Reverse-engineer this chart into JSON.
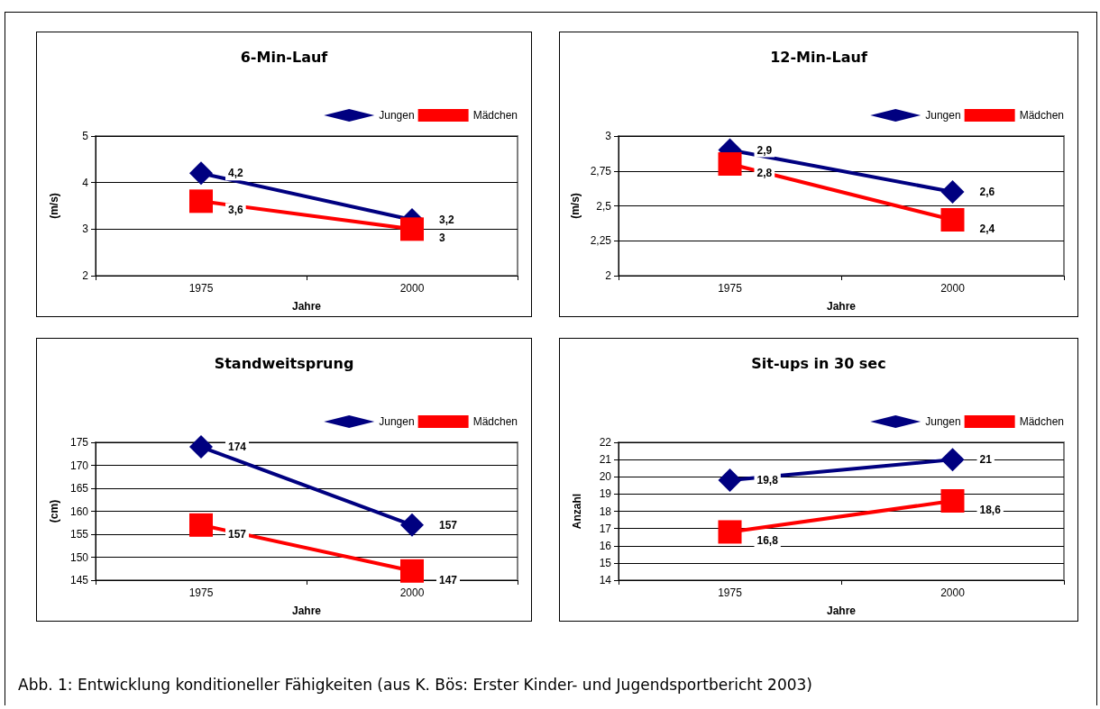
{
  "chart_data": [
    {
      "type": "line",
      "title": "6-Min-Lauf",
      "xlabel": "Jahre",
      "ylabel": "(m/s)",
      "categories": [
        "1975",
        "2000"
      ],
      "ylim": [
        2,
        5
      ],
      "yticks": [
        2,
        3,
        4,
        5
      ],
      "grid": "y",
      "legend": "top right",
      "series": [
        {
          "name": "Jungen",
          "color": "#000080",
          "marker": "diamond",
          "values": [
            4.2,
            3.2
          ],
          "value_labels": [
            "4,2",
            "3,2"
          ]
        },
        {
          "name": "Mädchen",
          "color": "#ff0000",
          "marker": "square",
          "values": [
            3.6,
            3
          ],
          "value_labels": [
            "3,6",
            "3"
          ]
        }
      ]
    },
    {
      "type": "line",
      "title": "12-Min-Lauf",
      "xlabel": "Jahre",
      "ylabel": "(m/s)",
      "categories": [
        "1975",
        "2000"
      ],
      "ylim": [
        2,
        3
      ],
      "yticks": [
        2,
        {
          "value": 2.25,
          "label": "2,25"
        },
        {
          "value": 2.5,
          "label": "2,5"
        },
        {
          "value": 2.75,
          "label": "2,75"
        },
        3
      ],
      "grid": "y",
      "legend": "top right",
      "series": [
        {
          "name": "Jungen",
          "color": "#000080",
          "marker": "diamond",
          "values": [
            2.9,
            2.6
          ],
          "value_labels": [
            "2,9",
            "2,6"
          ]
        },
        {
          "name": "Mädchen",
          "color": "#ff0000",
          "marker": "square",
          "values": [
            2.8,
            2.4
          ],
          "value_labels": [
            "2,8",
            "2,4"
          ]
        }
      ]
    },
    {
      "type": "line",
      "title": "Standweitsprung",
      "xlabel": "Jahre",
      "ylabel": "(cm)",
      "categories": [
        "1975",
        "2000"
      ],
      "ylim": [
        145,
        175
      ],
      "yticks": [
        145,
        150,
        155,
        160,
        165,
        170,
        175
      ],
      "grid": "y",
      "legend": "top right",
      "series": [
        {
          "name": "Jungen",
          "color": "#000080",
          "marker": "diamond",
          "values": [
            174,
            157
          ],
          "value_labels": [
            "174",
            "157"
          ]
        },
        {
          "name": "Mädchen",
          "color": "#ff0000",
          "marker": "square",
          "values": [
            157,
            147
          ],
          "value_labels": [
            "157",
            "147"
          ]
        }
      ]
    },
    {
      "type": "line",
      "title": "Sit-ups in 30 sec",
      "xlabel": "Jahre",
      "ylabel": "Anzahl",
      "categories": [
        "1975",
        "2000"
      ],
      "ylim": [
        14,
        22
      ],
      "yticks": [
        14,
        15,
        16,
        17,
        18,
        19,
        20,
        21,
        22
      ],
      "grid": "y",
      "legend": "top right",
      "series": [
        {
          "name": "Jungen",
          "color": "#000080",
          "marker": "diamond",
          "values": [
            19.8,
            21
          ],
          "value_labels": [
            "19,8",
            "21"
          ]
        },
        {
          "name": "Mädchen",
          "color": "#ff0000",
          "marker": "square",
          "values": [
            16.8,
            18.6
          ],
          "value_labels": [
            "16,8",
            "18,6"
          ]
        }
      ],
      "annotations": [
        "Abb. 1: Entwicklung konditioneller Fähigkeiten (aus K. Bös: Erster Kinder- und Jugendsportbericht 2003)"
      ]
    }
  ]
}
